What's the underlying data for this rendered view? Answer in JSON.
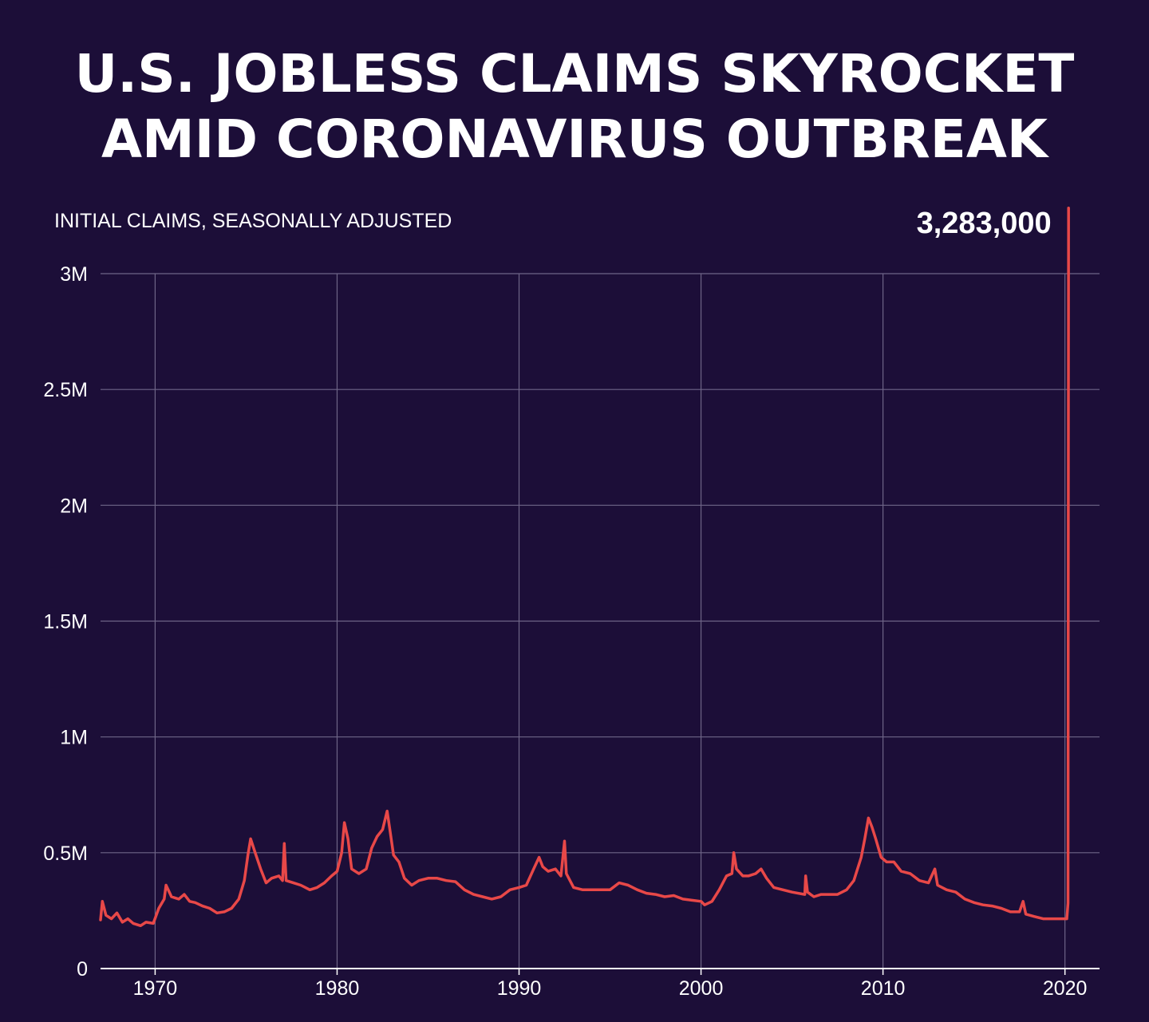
{
  "title_lines": [
    "U.S. JOBLESS CLAIMS SKYROCKET",
    "AMID CORONAVIRUS OUTBREAK"
  ],
  "colors": {
    "background": "#1c0e38",
    "line": "#e84848",
    "grid": "#6e6587",
    "text": "#ffffff"
  },
  "chart_data": {
    "type": "line",
    "title": "U.S. JOBLESS CLAIMS SKYROCKET AMID CORONAVIRUS OUTBREAK",
    "subtitle": "INITIAL CLAIMS, SEASONALLY ADJUSTED",
    "xlabel": "",
    "ylabel": "",
    "xlim": [
      1967.0,
      2021.9
    ],
    "ylim": [
      0,
      3000000
    ],
    "xticks": [
      1970,
      1980,
      1990,
      2000,
      2010,
      2020
    ],
    "xtick_labels": [
      "1970",
      "1980",
      "1990",
      "2000",
      "2010",
      "2020"
    ],
    "yticks": [
      0,
      500000,
      1000000,
      1500000,
      2000000,
      2500000,
      3000000
    ],
    "ytick_labels": [
      "0",
      "0.5M",
      "1M",
      "1.5M",
      "2M",
      "2.5M",
      "3M"
    ],
    "grid": true,
    "annotation": {
      "x": 2020.22,
      "y": 3283000,
      "text": "3,283,000"
    },
    "series": [
      {
        "values": [
          [
            1967.0,
            210000
          ],
          [
            1967.1,
            290000
          ],
          [
            1967.3,
            230000
          ],
          [
            1967.6,
            215000
          ],
          [
            1967.9,
            240000
          ],
          [
            1968.2,
            200000
          ],
          [
            1968.5,
            215000
          ],
          [
            1968.8,
            195000
          ],
          [
            1969.2,
            185000
          ],
          [
            1969.5,
            200000
          ],
          [
            1969.9,
            195000
          ],
          [
            1970.2,
            260000
          ],
          [
            1970.5,
            300000
          ],
          [
            1970.6,
            360000
          ],
          [
            1970.9,
            310000
          ],
          [
            1971.3,
            300000
          ],
          [
            1971.6,
            320000
          ],
          [
            1971.9,
            290000
          ],
          [
            1972.2,
            285000
          ],
          [
            1972.6,
            270000
          ],
          [
            1973.0,
            260000
          ],
          [
            1973.4,
            240000
          ],
          [
            1973.8,
            245000
          ],
          [
            1974.2,
            260000
          ],
          [
            1974.6,
            300000
          ],
          [
            1974.9,
            380000
          ],
          [
            1975.1,
            490000
          ],
          [
            1975.25,
            560000
          ],
          [
            1975.5,
            500000
          ],
          [
            1975.8,
            430000
          ],
          [
            1976.1,
            370000
          ],
          [
            1976.4,
            390000
          ],
          [
            1976.8,
            400000
          ],
          [
            1977.0,
            380000
          ],
          [
            1977.1,
            540000
          ],
          [
            1977.2,
            380000
          ],
          [
            1977.6,
            370000
          ],
          [
            1978.0,
            360000
          ],
          [
            1978.5,
            340000
          ],
          [
            1978.9,
            350000
          ],
          [
            1979.3,
            370000
          ],
          [
            1979.7,
            400000
          ],
          [
            1980.0,
            420000
          ],
          [
            1980.25,
            500000
          ],
          [
            1980.4,
            630000
          ],
          [
            1980.6,
            560000
          ],
          [
            1980.8,
            430000
          ],
          [
            1981.2,
            410000
          ],
          [
            1981.6,
            430000
          ],
          [
            1981.9,
            520000
          ],
          [
            1982.2,
            570000
          ],
          [
            1982.5,
            600000
          ],
          [
            1982.75,
            680000
          ],
          [
            1982.9,
            600000
          ],
          [
            1983.1,
            490000
          ],
          [
            1983.4,
            460000
          ],
          [
            1983.7,
            390000
          ],
          [
            1984.1,
            360000
          ],
          [
            1984.5,
            380000
          ],
          [
            1985.0,
            390000
          ],
          [
            1985.5,
            390000
          ],
          [
            1986.0,
            380000
          ],
          [
            1986.5,
            375000
          ],
          [
            1987.0,
            340000
          ],
          [
            1987.5,
            320000
          ],
          [
            1988.0,
            310000
          ],
          [
            1988.5,
            300000
          ],
          [
            1989.0,
            310000
          ],
          [
            1989.5,
            340000
          ],
          [
            1990.0,
            350000
          ],
          [
            1990.4,
            360000
          ],
          [
            1990.8,
            430000
          ],
          [
            1991.1,
            480000
          ],
          [
            1991.3,
            440000
          ],
          [
            1991.6,
            420000
          ],
          [
            1992.0,
            430000
          ],
          [
            1992.3,
            400000
          ],
          [
            1992.5,
            550000
          ],
          [
            1992.6,
            410000
          ],
          [
            1993.0,
            350000
          ],
          [
            1993.5,
            340000
          ],
          [
            1994.0,
            340000
          ],
          [
            1994.5,
            340000
          ],
          [
            1995.0,
            340000
          ],
          [
            1995.5,
            370000
          ],
          [
            1996.0,
            360000
          ],
          [
            1996.5,
            340000
          ],
          [
            1997.0,
            325000
          ],
          [
            1997.5,
            320000
          ],
          [
            1998.0,
            310000
          ],
          [
            1998.5,
            315000
          ],
          [
            1999.0,
            300000
          ],
          [
            1999.5,
            295000
          ],
          [
            2000.0,
            290000
          ],
          [
            2000.2,
            275000
          ],
          [
            2000.6,
            290000
          ],
          [
            2001.0,
            340000
          ],
          [
            2001.4,
            400000
          ],
          [
            2001.7,
            410000
          ],
          [
            2001.8,
            500000
          ],
          [
            2001.95,
            430000
          ],
          [
            2002.3,
            400000
          ],
          [
            2002.6,
            400000
          ],
          [
            2003.0,
            410000
          ],
          [
            2003.3,
            430000
          ],
          [
            2003.6,
            390000
          ],
          [
            2004.0,
            350000
          ],
          [
            2004.5,
            340000
          ],
          [
            2005.0,
            330000
          ],
          [
            2005.7,
            320000
          ],
          [
            2005.75,
            400000
          ],
          [
            2005.85,
            330000
          ],
          [
            2006.2,
            310000
          ],
          [
            2006.6,
            320000
          ],
          [
            2007.0,
            320000
          ],
          [
            2007.5,
            320000
          ],
          [
            2008.0,
            340000
          ],
          [
            2008.4,
            380000
          ],
          [
            2008.8,
            480000
          ],
          [
            2009.0,
            560000
          ],
          [
            2009.2,
            650000
          ],
          [
            2009.4,
            610000
          ],
          [
            2009.6,
            560000
          ],
          [
            2009.9,
            480000
          ],
          [
            2010.2,
            460000
          ],
          [
            2010.6,
            460000
          ],
          [
            2011.0,
            420000
          ],
          [
            2011.5,
            410000
          ],
          [
            2012.0,
            380000
          ],
          [
            2012.5,
            370000
          ],
          [
            2012.85,
            430000
          ],
          [
            2013.0,
            360000
          ],
          [
            2013.5,
            340000
          ],
          [
            2014.0,
            330000
          ],
          [
            2014.5,
            300000
          ],
          [
            2015.0,
            285000
          ],
          [
            2015.5,
            275000
          ],
          [
            2016.0,
            270000
          ],
          [
            2016.5,
            260000
          ],
          [
            2017.0,
            245000
          ],
          [
            2017.5,
            245000
          ],
          [
            2017.7,
            290000
          ],
          [
            2017.85,
            235000
          ],
          [
            2018.3,
            225000
          ],
          [
            2018.8,
            215000
          ],
          [
            2019.3,
            215000
          ],
          [
            2019.8,
            215000
          ],
          [
            2020.1,
            215000
          ],
          [
            2020.17,
            282000
          ],
          [
            2020.2,
            3283000
          ]
        ]
      }
    ]
  }
}
